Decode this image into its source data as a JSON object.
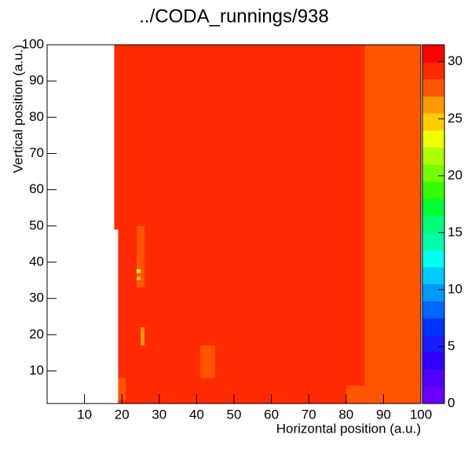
{
  "chart_data": {
    "type": "heatmap",
    "title": "../CODA_runnings/938",
    "x_label": "Horizontal position (a.u.)",
    "y_label": "Vertical position (a.u.)",
    "xlim": [
      0,
      100
    ],
    "xticks": [
      10,
      20,
      30,
      40,
      50,
      60,
      70,
      80,
      90,
      100
    ],
    "ylim": [
      1,
      100
    ],
    "yticks": [
      10,
      20,
      30,
      40,
      50,
      60,
      70,
      80,
      90,
      100
    ],
    "zlim": [
      0,
      31.5
    ],
    "zticks": [
      0,
      5,
      10,
      15,
      20,
      25,
      30
    ],
    "palette": [
      "#6a00ff",
      "#5000ff",
      "#3300ff",
      "#1a1aff",
      "#0033ff",
      "#0066ff",
      "#0099ff",
      "#00ccff",
      "#00ffee",
      "#00ffaa",
      "#00ff77",
      "#00ff33",
      "#33ff00",
      "#77ff00",
      "#aaff00",
      "#eeff00",
      "#ffcc00",
      "#ff9900",
      "#ff5500",
      "#ff2a00",
      "#ff0000"
    ],
    "regions": [
      {
        "x": [
          18,
          85
        ],
        "y": [
          49,
          100
        ],
        "value": 30.5
      },
      {
        "x": [
          19,
          85
        ],
        "y": [
          1,
          49
        ],
        "value": 30.5
      },
      {
        "x": [
          85,
          100
        ],
        "y": [
          1,
          100
        ],
        "value": 28.5
      },
      {
        "x": [
          24,
          26
        ],
        "y": [
          33,
          50
        ],
        "value": 28.5
      },
      {
        "x": [
          25,
          26
        ],
        "y": [
          17,
          22
        ],
        "value": 27
      },
      {
        "x": [
          41,
          45
        ],
        "y": [
          8,
          17
        ],
        "value": 28.5
      },
      {
        "x": [
          19,
          21
        ],
        "y": [
          2,
          8
        ],
        "value": 28.5
      },
      {
        "x": [
          80,
          85
        ],
        "y": [
          1,
          6
        ],
        "value": 28.5
      },
      {
        "x": [
          24,
          25
        ],
        "y": [
          37,
          38
        ],
        "value": 24
      },
      {
        "x": [
          24,
          25
        ],
        "y": [
          35,
          36
        ],
        "value": 25.5
      }
    ]
  }
}
